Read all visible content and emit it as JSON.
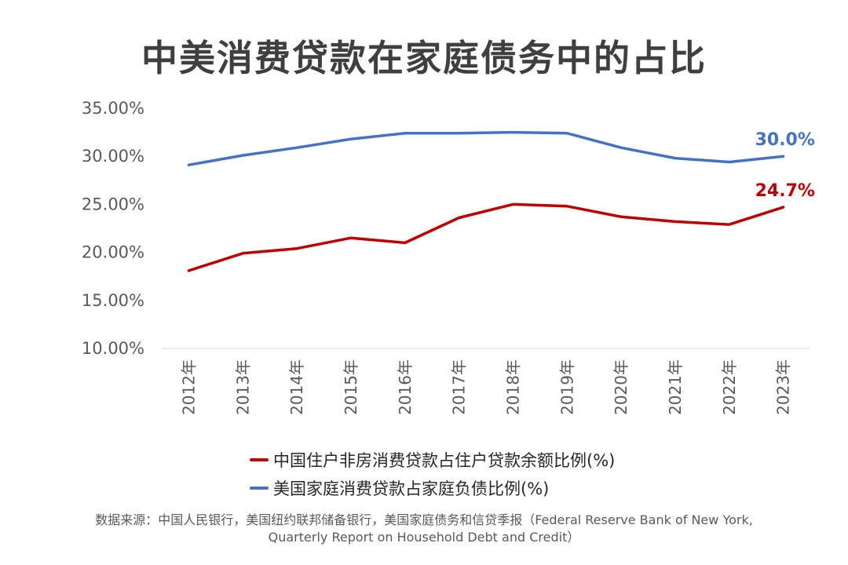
{
  "title": "中美消费贷款在家庭债务中的占比",
  "chart_data": {
    "type": "line",
    "categories": [
      "2012年",
      "2013年",
      "2014年",
      "2015年",
      "2016年",
      "2017年",
      "2018年",
      "2019年",
      "2020年",
      "2021年",
      "2022年",
      "2023年"
    ],
    "y_ticks": [
      "10.00%",
      "15.00%",
      "20.00%",
      "25.00%",
      "30.00%",
      "35.00%"
    ],
    "ylim": [
      10,
      35
    ],
    "series": [
      {
        "name": "中国住户非房消费贷款占住户贷款余额比例(%)",
        "color": "#c00000",
        "values": [
          18.1,
          19.9,
          20.4,
          21.5,
          21.0,
          23.6,
          25.0,
          24.8,
          23.7,
          23.2,
          22.9,
          24.7
        ],
        "end_label": "24.7%"
      },
      {
        "name": "美国家庭消费贷款占家庭负债比例(%)",
        "color": "#4472c4",
        "values": [
          29.1,
          30.1,
          30.9,
          31.8,
          32.4,
          32.4,
          32.5,
          32.4,
          30.9,
          29.8,
          29.4,
          30.0
        ],
        "end_label": "30.0%"
      }
    ]
  },
  "source": {
    "line1": "数据来源：中国人民银行，美国纽约联邦储备银行，美国家庭债务和信贷季报（Federal Reserve Bank of New York,",
    "line2": "Quarterly Report on Household Debt and Credit）"
  }
}
